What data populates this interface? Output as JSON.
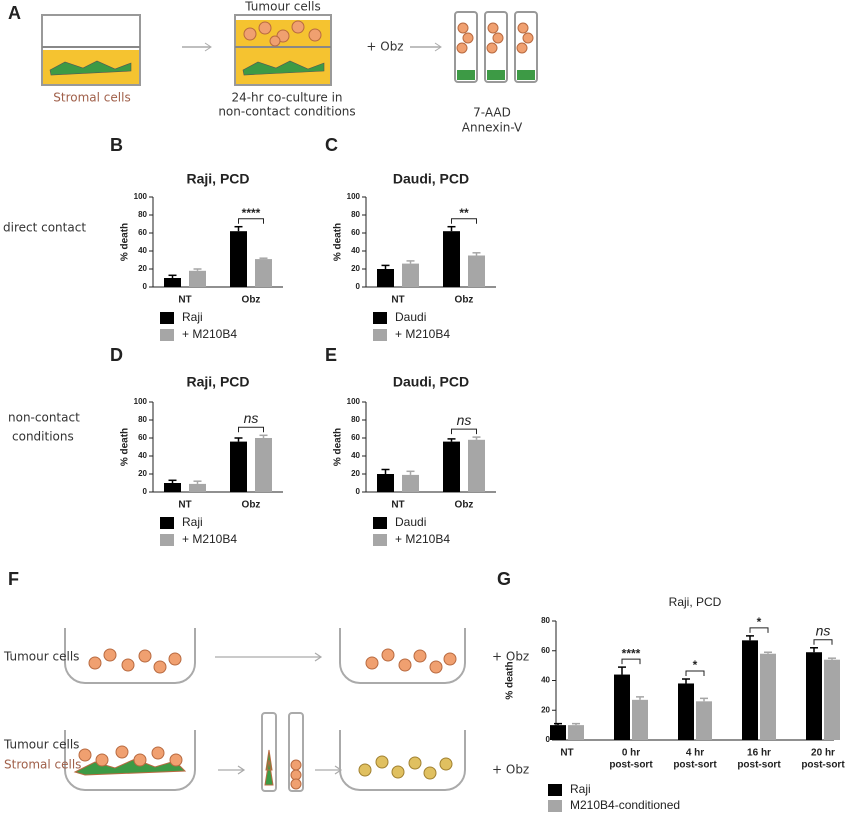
{
  "panel_labels": [
    "A",
    "B",
    "C",
    "D",
    "E",
    "F",
    "G"
  ],
  "row_labels": {
    "direct": "direct contact",
    "noncontact": [
      "non-contact",
      "conditions"
    ]
  },
  "panel_a": {
    "tumour": "Tumour cells",
    "stromal": "Stromal cells",
    "coculture": [
      "24-hr co-culture in",
      "non-contact conditions"
    ],
    "treatment": "+ Obz",
    "assays": [
      "7-AAD",
      "Annexin-V"
    ]
  },
  "panel_f": {
    "top_label": "Tumour cells",
    "top_treatment": "+ Obz",
    "bottom_labels": [
      "Tumour cells",
      "Stromal cells"
    ],
    "bottom_treatment": "+ Obz"
  },
  "chart_data": [
    {
      "type": "bar",
      "title": "Raji, PCD",
      "ylabel": "% death",
      "categories": [
        "NT",
        "Obz"
      ],
      "series": [
        {
          "name": "Raji",
          "color": "#000000",
          "values": [
            10,
            62
          ],
          "errors": [
            3,
            5
          ]
        },
        {
          "name": "+ M210B4",
          "color": "#a6a6a6",
          "values": [
            18,
            31
          ],
          "errors": [
            2,
            1
          ]
        }
      ],
      "ylim": [
        0,
        100
      ],
      "yticks": [
        0,
        20,
        40,
        60,
        80,
        100
      ],
      "significance": [
        null,
        "****"
      ]
    },
    {
      "type": "bar",
      "title": "Daudi, PCD",
      "ylabel": "% death",
      "categories": [
        "NT",
        "Obz"
      ],
      "series": [
        {
          "name": "Daudi",
          "color": "#000000",
          "values": [
            20,
            62
          ],
          "errors": [
            4,
            5
          ]
        },
        {
          "name": "+ M210B4",
          "color": "#a6a6a6",
          "values": [
            26,
            35
          ],
          "errors": [
            3,
            3
          ]
        }
      ],
      "ylim": [
        0,
        100
      ],
      "yticks": [
        0,
        20,
        40,
        60,
        80,
        100
      ],
      "significance": [
        null,
        "**"
      ]
    },
    {
      "type": "bar",
      "title": "Raji, PCD",
      "ylabel": "% death",
      "categories": [
        "NT",
        "Obz"
      ],
      "series": [
        {
          "name": "Raji",
          "color": "#000000",
          "values": [
            10,
            56
          ],
          "errors": [
            3,
            4
          ]
        },
        {
          "name": "+ M210B4",
          "color": "#a6a6a6",
          "values": [
            9,
            60
          ],
          "errors": [
            3,
            3
          ]
        }
      ],
      "ylim": [
        0,
        100
      ],
      "yticks": [
        0,
        20,
        40,
        60,
        80,
        100
      ],
      "significance": [
        null,
        "ns"
      ]
    },
    {
      "type": "bar",
      "title": "Daudi, PCD",
      "ylabel": "% death",
      "categories": [
        "NT",
        "Obz"
      ],
      "series": [
        {
          "name": "Daudi",
          "color": "#000000",
          "values": [
            20,
            56
          ],
          "errors": [
            5,
            3
          ]
        },
        {
          "name": "+ M210B4",
          "color": "#a6a6a6",
          "values": [
            19,
            58
          ],
          "errors": [
            4,
            3
          ]
        }
      ],
      "ylim": [
        0,
        100
      ],
      "yticks": [
        0,
        20,
        40,
        60,
        80,
        100
      ],
      "significance": [
        null,
        "ns"
      ]
    },
    {
      "type": "bar",
      "title": "Raji, PCD",
      "ylabel": "% death",
      "categories": [
        "NT",
        [
          "0 hr",
          "post-sort"
        ],
        [
          "4 hr",
          "post-sort"
        ],
        [
          "16 hr",
          "post-sort"
        ],
        [
          "20 hr",
          "post-sort"
        ]
      ],
      "series": [
        {
          "name": "Raji",
          "color": "#000000",
          "values": [
            10,
            44,
            38,
            67,
            59
          ],
          "errors": [
            1,
            5,
            3,
            3,
            3
          ]
        },
        {
          "name": "M210B4-conditioned",
          "color": "#a6a6a6",
          "values": [
            10,
            27,
            26,
            58,
            54
          ],
          "errors": [
            1,
            2,
            2,
            1,
            1
          ]
        }
      ],
      "ylim": [
        0,
        80
      ],
      "yticks": [
        0,
        20,
        40,
        60,
        80
      ],
      "significance": [
        null,
        "****",
        "*",
        "*",
        "ns"
      ]
    }
  ]
}
